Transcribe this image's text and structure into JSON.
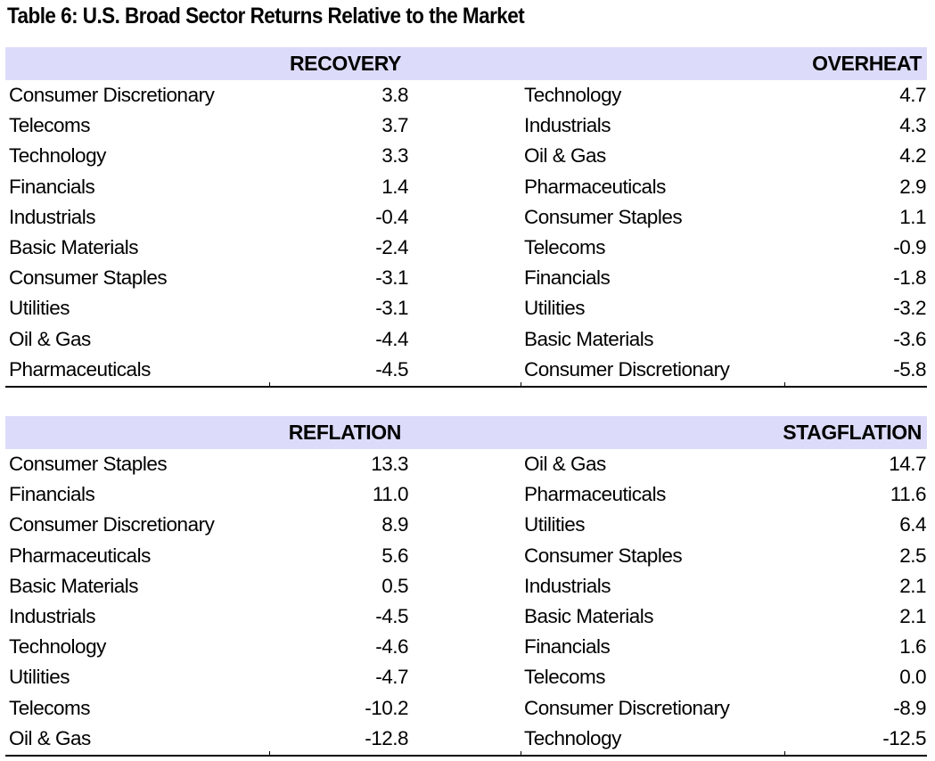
{
  "title": "Table 6: U.S. Broad Sector Returns Relative to the Market",
  "panels": [
    {
      "name": "RECOVERY",
      "rows": [
        {
          "sector": "Consumer Discretionary",
          "value": "3.8"
        },
        {
          "sector": "Telecoms",
          "value": "3.7"
        },
        {
          "sector": "Technology",
          "value": "3.3"
        },
        {
          "sector": "Financials",
          "value": "1.4"
        },
        {
          "sector": "Industrials",
          "value": "-0.4"
        },
        {
          "sector": "Basic Materials",
          "value": "-2.4"
        },
        {
          "sector": "Consumer Staples",
          "value": "-3.1"
        },
        {
          "sector": "Utilities",
          "value": "-3.1"
        },
        {
          "sector": "Oil & Gas",
          "value": "-4.4"
        },
        {
          "sector": "Pharmaceuticals",
          "value": "-4.5"
        }
      ]
    },
    {
      "name": "OVERHEAT",
      "rows": [
        {
          "sector": "Technology",
          "value": "4.7"
        },
        {
          "sector": "Industrials",
          "value": "4.3"
        },
        {
          "sector": "Oil & Gas",
          "value": "4.2"
        },
        {
          "sector": "Pharmaceuticals",
          "value": "2.9"
        },
        {
          "sector": "Consumer Staples",
          "value": "1.1"
        },
        {
          "sector": "Telecoms",
          "value": "-0.9"
        },
        {
          "sector": "Financials",
          "value": "-1.8"
        },
        {
          "sector": "Utilities",
          "value": "-3.2"
        },
        {
          "sector": "Basic Materials",
          "value": "-3.6"
        },
        {
          "sector": "Consumer Discretionary",
          "value": "-5.8"
        }
      ]
    },
    {
      "name": "REFLATION",
      "rows": [
        {
          "sector": "Consumer Staples",
          "value": "13.3"
        },
        {
          "sector": "Financials",
          "value": "11.0"
        },
        {
          "sector": "Consumer Discretionary",
          "value": "8.9"
        },
        {
          "sector": "Pharmaceuticals",
          "value": "5.6"
        },
        {
          "sector": "Basic Materials",
          "value": "0.5"
        },
        {
          "sector": "Industrials",
          "value": "-4.5"
        },
        {
          "sector": "Technology",
          "value": "-4.6"
        },
        {
          "sector": "Utilities",
          "value": "-4.7"
        },
        {
          "sector": "Telecoms",
          "value": "-10.2"
        },
        {
          "sector": "Oil & Gas",
          "value": "-12.8"
        }
      ]
    },
    {
      "name": "STAGFLATION",
      "rows": [
        {
          "sector": "Oil & Gas",
          "value": "14.7"
        },
        {
          "sector": "Pharmaceuticals",
          "value": "11.6"
        },
        {
          "sector": "Utilities",
          "value": "6.4"
        },
        {
          "sector": "Consumer Staples",
          "value": "2.5"
        },
        {
          "sector": "Industrials",
          "value": "2.1"
        },
        {
          "sector": "Basic Materials",
          "value": "2.1"
        },
        {
          "sector": "Financials",
          "value": "1.6"
        },
        {
          "sector": "Telecoms",
          "value": "0.0"
        },
        {
          "sector": "Consumer Discretionary",
          "value": "-8.9"
        },
        {
          "sector": "Technology",
          "value": "-12.5"
        }
      ]
    }
  ],
  "colors": {
    "header_band": "#dcdcfa",
    "text": "#000000",
    "rule": "#000000"
  }
}
